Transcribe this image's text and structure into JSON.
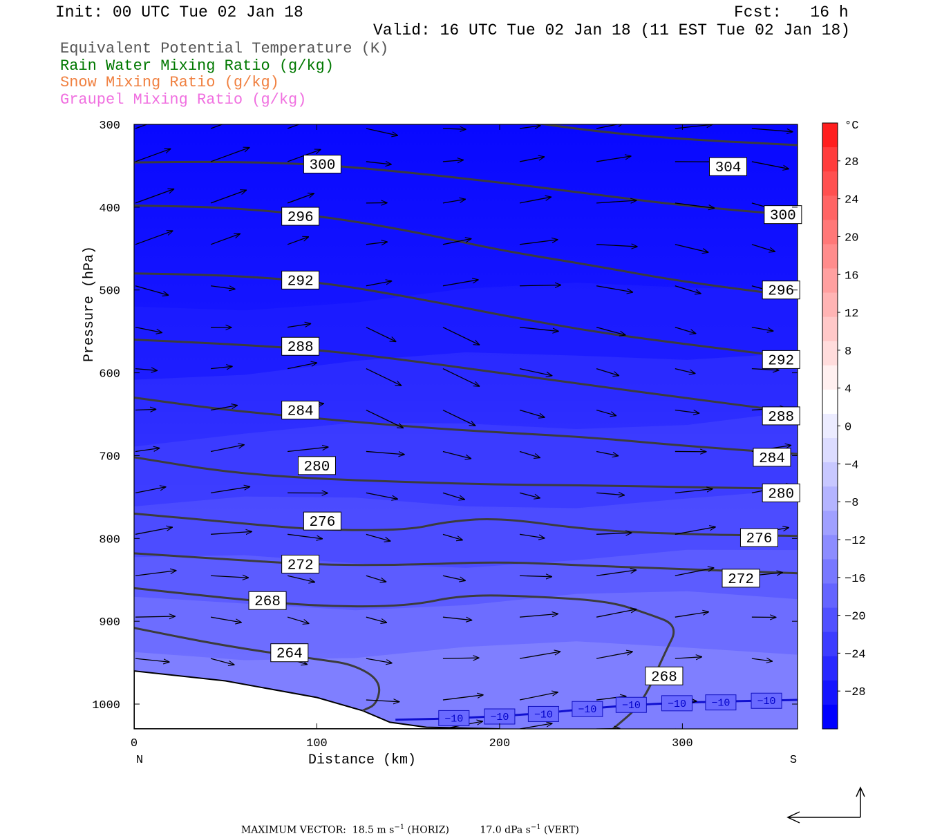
{
  "header": {
    "init": "Init: 00 UTC Tue 02 Jan 18",
    "fcst": "Fcst:   16 h",
    "valid": "Valid: 16 UTC Tue 02 Jan 18 (11 EST Tue 02 Jan 18)"
  },
  "legend": [
    {
      "label": "Equivalent Potential Temperature (K)",
      "color": "#555555"
    },
    {
      "label": "Rain Water Mixing Ratio (g/kg)",
      "color": "#007800"
    },
    {
      "label": "Snow Mixing Ratio (g/kg)",
      "color": "#f08040"
    },
    {
      "label": "Graupel Mixing Ratio (g/kg)",
      "color": "#f070e0"
    }
  ],
  "chart_data": {
    "type": "heatmap",
    "xlabel": "Distance (km)",
    "ylabel": "Pressure (hPa)",
    "xlim": [
      0,
      363
    ],
    "ylim": [
      1030,
      300
    ],
    "x_ticks": [
      0,
      100,
      200,
      300
    ],
    "y_ticks": [
      300,
      400,
      500,
      600,
      700,
      800,
      900,
      1000
    ],
    "x_start_label": "N",
    "x_end_label": "S",
    "colorbar": {
      "unit": "°C",
      "labels": [
        "28",
        "24",
        "20",
        "16",
        "12",
        "8",
        "4",
        "0",
        "−4",
        "−8",
        "−12",
        "−16",
        "−20",
        "−24",
        "−28"
      ],
      "label_values": [
        28,
        24,
        20,
        16,
        12,
        8,
        4,
        0,
        -4,
        -8,
        -12,
        -16,
        -20,
        -24,
        -28
      ],
      "colors": [
        "#ff1e1e",
        "#ff3c3c",
        "#ff5050",
        "#ff6464",
        "#ff7878",
        "#ff8c8c",
        "#ffa0a0",
        "#ffb4b4",
        "#ffc8c8",
        "#ffdcdc",
        "#fff0f0",
        "#ffffff",
        "#ececff",
        "#dcdcff",
        "#c8c8ff",
        "#b4b4ff",
        "#a0a0ff",
        "#8c8cff",
        "#7878ff",
        "#6464ff",
        "#5050ff",
        "#3c3cff",
        "#2828ff",
        "#1414ff",
        "#0000ff"
      ]
    },
    "theta_e_contours": [
      {
        "value": "304",
        "points": [
          [
            0,
            258
          ],
          [
            50,
            262
          ],
          [
            100,
            268
          ],
          [
            150,
            278
          ],
          [
            200,
            292
          ],
          [
            250,
            308
          ],
          [
            300,
            318
          ],
          [
            363,
            325
          ]
        ]
      },
      {
        "value": "300",
        "points": [
          [
            0,
            346
          ],
          [
            50,
            345
          ],
          [
            100,
            348
          ],
          [
            150,
            358
          ],
          [
            200,
            370
          ],
          [
            250,
            384
          ],
          [
            300,
            398
          ],
          [
            363,
            410
          ]
        ]
      },
      {
        "value": "296",
        "points": [
          [
            0,
            398
          ],
          [
            50,
            400
          ],
          [
            100,
            410
          ],
          [
            150,
            428
          ],
          [
            200,
            452
          ],
          [
            250,
            470
          ],
          [
            300,
            490
          ],
          [
            363,
            508
          ]
        ]
      },
      {
        "value": "292",
        "points": [
          [
            0,
            480
          ],
          [
            50,
            482
          ],
          [
            100,
            490
          ],
          [
            150,
            508
          ],
          [
            200,
            530
          ],
          [
            250,
            550
          ],
          [
            300,
            565
          ],
          [
            363,
            582
          ]
        ]
      },
      {
        "value": "288",
        "points": [
          [
            0,
            560
          ],
          [
            50,
            565
          ],
          [
            100,
            572
          ],
          [
            150,
            585
          ],
          [
            200,
            600
          ],
          [
            250,
            615
          ],
          [
            300,
            630
          ],
          [
            363,
            648
          ]
        ]
      },
      {
        "value": "284",
        "points": [
          [
            0,
            630
          ],
          [
            50,
            645
          ],
          [
            100,
            655
          ],
          [
            150,
            665
          ],
          [
            200,
            672
          ],
          [
            250,
            678
          ],
          [
            300,
            688
          ],
          [
            363,
            698
          ]
        ]
      },
      {
        "value": "280",
        "points": [
          [
            0,
            702
          ],
          [
            50,
            720
          ],
          [
            100,
            728
          ],
          [
            150,
            732
          ],
          [
            200,
            735
          ],
          [
            250,
            736
          ],
          [
            300,
            738
          ],
          [
            363,
            740
          ]
        ]
      },
      {
        "value": "276",
        "points": [
          [
            0,
            770
          ],
          [
            50,
            780
          ],
          [
            100,
            790
          ],
          [
            150,
            790
          ],
          [
            170,
            780
          ],
          [
            200,
            775
          ],
          [
            250,
            790
          ],
          [
            300,
            795
          ],
          [
            363,
            797
          ]
        ]
      },
      {
        "value": "272",
        "points": [
          [
            0,
            818
          ],
          [
            50,
            825
          ],
          [
            100,
            832
          ],
          [
            150,
            832
          ],
          [
            200,
            828
          ],
          [
            250,
            833
          ],
          [
            300,
            837
          ],
          [
            363,
            842
          ]
        ]
      },
      {
        "value": "268",
        "points": [
          [
            0,
            860
          ],
          [
            50,
            872
          ],
          [
            100,
            882
          ],
          [
            150,
            882
          ],
          [
            180,
            868
          ],
          [
            220,
            870
          ],
          [
            260,
            876
          ],
          [
            280,
            890
          ],
          [
            298,
            905
          ],
          [
            290,
            940
          ],
          [
            278,
            1000
          ],
          [
            262,
            1030
          ]
        ]
      },
      {
        "value": "264",
        "points": [
          [
            0,
            908
          ],
          [
            50,
            930
          ],
          [
            100,
            946
          ],
          [
            120,
            952
          ],
          [
            135,
            972
          ],
          [
            133,
            1000
          ],
          [
            125,
            1008
          ]
        ]
      }
    ],
    "temperature_isotherm": {
      "value": "−10",
      "points": [
        [
          143,
          1019
        ],
        [
          180,
          1017
        ],
        [
          220,
          1012
        ],
        [
          260,
          1003
        ],
        [
          300,
          998
        ],
        [
          363,
          995
        ]
      ]
    },
    "terrain_pressure": [
      [
        0,
        960
      ],
      [
        50,
        972
      ],
      [
        100,
        992
      ],
      [
        125,
        1008
      ],
      [
        140,
        1022
      ],
      [
        160,
        1028
      ],
      [
        200,
        1030
      ]
    ],
    "max_vector": {
      "label": "MAXIMUM VECTOR:",
      "horiz_value": "18.5",
      "horiz_unit": "m s",
      "horiz_exp": "−1",
      "horiz_tag": "(HORIZ)",
      "vert_value": "17.0",
      "vert_unit": "dPa s",
      "vert_exp": "−1",
      "vert_tag": "(VERT)"
    }
  }
}
